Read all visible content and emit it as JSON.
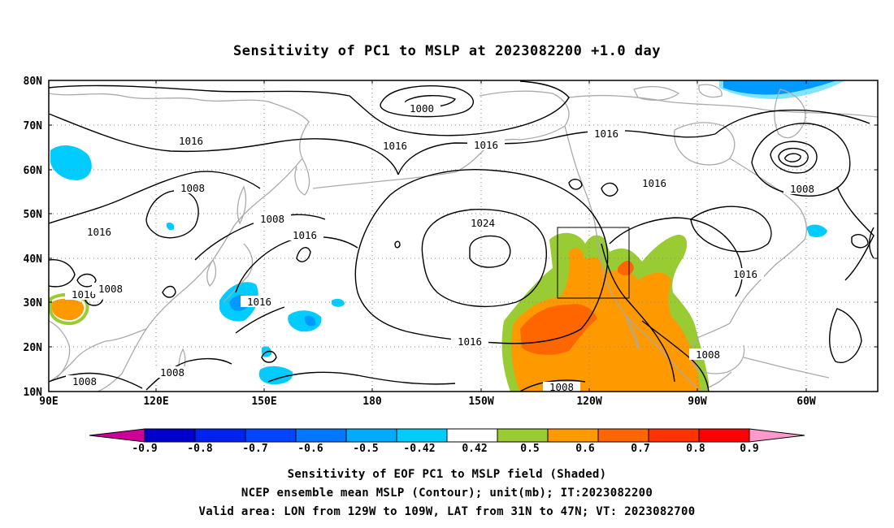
{
  "title": "Sensitivity of PC1 to MSLP at 2023082200 +1.0 day",
  "map": {
    "lat_ticks": [
      "80N",
      "70N",
      "60N",
      "50N",
      "40N",
      "30N",
      "20N",
      "10N"
    ],
    "lon_ticks": [
      "90E",
      "120E",
      "150E",
      "180",
      "150W",
      "120W",
      "90W",
      "60W"
    ],
    "contour_labels": [
      "1000",
      "1016",
      "1016",
      "1016",
      "1016",
      "1016",
      "1024",
      "1008",
      "1016",
      "1008",
      "1016",
      "1016",
      "1016",
      "1016",
      "1008",
      "1008",
      "1016",
      "1008",
      "1008",
      "1008",
      "1008",
      "1016"
    ],
    "valid_box": {
      "lon": [
        -129,
        -109
      ],
      "lat": [
        31,
        47
      ]
    },
    "sensitivity_positive_colors": [
      "#99cc33",
      "#ff9900",
      "#ff6600",
      "#ff3300"
    ],
    "sensitivity_negative_colors": [
      "#00ccff",
      "#0099ff",
      "#0066ff",
      "#0033ff"
    ],
    "contour_color": "#000000",
    "coastline_color": "#aaaaaa"
  },
  "colorbar": {
    "labels": [
      "-0.9",
      "-0.8",
      "-0.7",
      "-0.6",
      "-0.5",
      "-0.42",
      "0.42",
      "0.5",
      "0.6",
      "0.7",
      "0.8",
      "0.9"
    ],
    "colors": [
      "#cc0099",
      "#0000cc",
      "#0022ee",
      "#0044ff",
      "#0077ff",
      "#00aaff",
      "#00ccff",
      "#ffffff",
      "#99cc33",
      "#ff9900",
      "#ff6600",
      "#ff3300",
      "#ff0000",
      "#ff99cc"
    ]
  },
  "caption": {
    "line1": "Sensitivity of EOF PC1 to MSLP field (Shaded)",
    "line2": "NCEP ensemble mean MSLP (Contour); unit(mb); IT:2023082200",
    "line3": "Valid area: LON from 129W to 109W, LAT from 31N to 47N; VT: 2023082700"
  }
}
